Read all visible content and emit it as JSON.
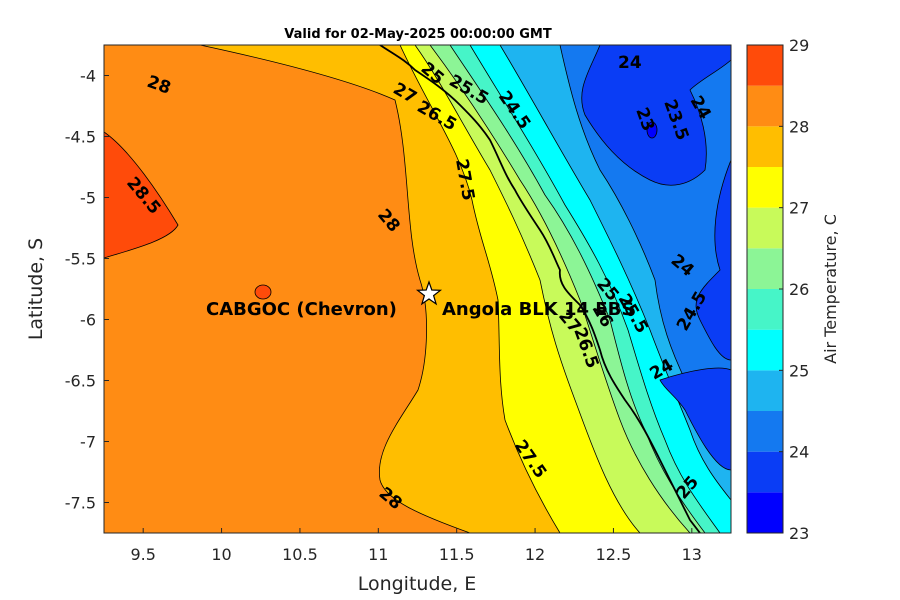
{
  "title": "Valid for 02-May-2025 00:00:00 GMT",
  "xlabel": "Longitude, E",
  "ylabel": "Latitude, S",
  "x_ticks": [
    "9.5",
    "10",
    "10.5",
    "11",
    "11.5",
    "12",
    "12.5",
    "13"
  ],
  "y_ticks": [
    "-4",
    "-4.5",
    "-5",
    "-5.5",
    "-6",
    "-6.5",
    "-7",
    "-7.5"
  ],
  "colorbar": {
    "label": "Air Temperature, C",
    "ticks": [
      "29",
      "28",
      "27",
      "26",
      "25",
      "24",
      "23"
    ],
    "colors": [
      "#0000ff",
      "#0a3df5",
      "#1479f0",
      "#1eb4f0",
      "#00ffff",
      "#46f5c8",
      "#8cf596",
      "#c8fa5a",
      "#ffff00",
      "#ffbe00",
      "#ff8c14",
      "#ff4b0a",
      "#ff0000"
    ]
  },
  "site": {
    "label_left": "CABGOC (Chevron)",
    "label_right": "Angola BLK 14 EBS"
  },
  "contour_labels": [
    "28",
    "28.5",
    "28",
    "28",
    "27.5",
    "27.5",
    "25",
    "27",
    "26.5",
    "25.5",
    "24.5",
    "24",
    "23",
    "23.5",
    "24",
    "24",
    "24.5",
    "25",
    "25.5",
    "26",
    "27",
    "26.5",
    "24",
    "25"
  ],
  "chart_data": {
    "type": "heatmap",
    "title": "Valid for 02-May-2025 00:00:00 GMT",
    "xlabel": "Longitude, E",
    "ylabel": "Latitude, S",
    "xlim": [
      9.25,
      13.25
    ],
    "ylim": [
      -7.75,
      -3.75
    ],
    "colorbar_range": [
      23,
      29
    ],
    "colorbar_step": 0.5,
    "site": {
      "lon": 11.33,
      "lat": -5.8
    },
    "field_description_values": {
      "offshore_west": 28,
      "far_west_max": 28.5,
      "near_coast": 27,
      "inland_min": 23
    }
  }
}
